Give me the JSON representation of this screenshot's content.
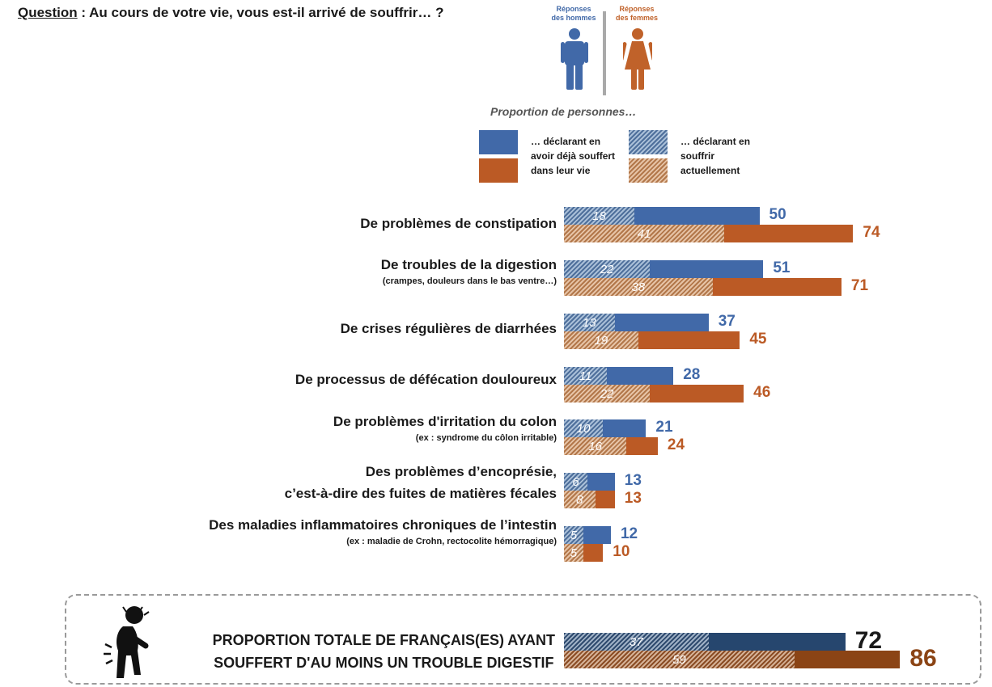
{
  "question": {
    "prefix": "Question",
    "text": " : Au cours de votre vie, vous est-il arrivé de souffrir… ?"
  },
  "legend": {
    "men_label": [
      "Réponses",
      "des hommes"
    ],
    "women_label": [
      "Réponses",
      "des femmes"
    ],
    "title": "Proportion de personnes…",
    "lifetime_text": [
      "… déclarant en",
      "avoir déjà souffert",
      "dans leur vie"
    ],
    "current_text": [
      "… déclarant en",
      "souffrir",
      "actuellement"
    ]
  },
  "colors": {
    "men_solid": "#4169a8",
    "women_solid": "#bb5a25",
    "men_value": "#4169a8",
    "women_value": "#bb5a25",
    "total_men": "#26466e",
    "total_women": "#8b4415",
    "total_men_value": "#1a1a1a",
    "total_women_value": "#8b4415"
  },
  "icons": {
    "men": "man-icon",
    "women": "woman-icon",
    "total": "stomach-pain-person-icon"
  },
  "chart_data": {
    "type": "bar",
    "orientation": "horizontal",
    "categories": [
      {
        "main": "De problèmes de constipation",
        "sub": ""
      },
      {
        "main": "De troubles de la digestion",
        "sub": "(crampes, douleurs dans le bas ventre…)"
      },
      {
        "main": "De crises régulières de diarrhées",
        "sub": ""
      },
      {
        "main": "De processus de défécation douloureux",
        "sub": ""
      },
      {
        "main": "De problèmes d'irritation du colon",
        "sub": "(ex : syndrome du côlon irritable)"
      },
      {
        "main": "Des problèmes d’encoprésie,\nc’est-à-dire des fuites de matières fécales",
        "sub": ""
      },
      {
        "main": "Des maladies inflammatoires chroniques de l’intestin",
        "sub": "(ex : maladie de Crohn, rectocolite hémorragique)"
      }
    ],
    "series": [
      {
        "name": "Réponses des hommes — déjà souffert dans leur vie",
        "values": [
          50,
          51,
          37,
          28,
          21,
          13,
          12
        ]
      },
      {
        "name": "Réponses des hommes — souffrir actuellement",
        "values": [
          18,
          22,
          13,
          11,
          10,
          6,
          5
        ]
      },
      {
        "name": "Réponses des femmes — déjà souffert dans leur vie",
        "values": [
          74,
          71,
          45,
          46,
          24,
          13,
          10
        ]
      },
      {
        "name": "Réponses des femmes — souffrir actuellement",
        "values": [
          41,
          38,
          19,
          22,
          16,
          8,
          5
        ]
      }
    ],
    "total": {
      "label": [
        "PROPORTION TOTALE DE FRANÇAIS(ES) AYANT",
        "SOUFFERT D'AU MOINS UN TROUBLE  DIGESTIF"
      ],
      "men": {
        "lifetime": 72,
        "current": 37
      },
      "women": {
        "lifetime": 86,
        "current": 59
      }
    }
  }
}
